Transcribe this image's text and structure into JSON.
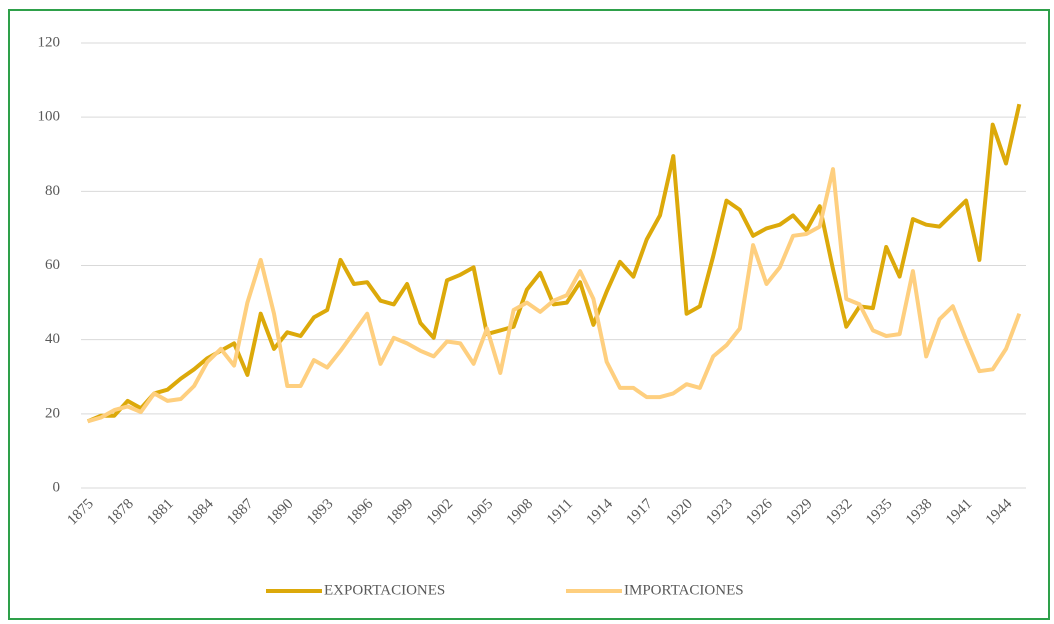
{
  "chart_data": {
    "type": "line",
    "categories": [
      "1875",
      null,
      null,
      "1878",
      null,
      null,
      "1881",
      null,
      null,
      "1884",
      null,
      null,
      "1887",
      null,
      null,
      "1890",
      null,
      null,
      "1893",
      null,
      null,
      "1896",
      null,
      null,
      "1899",
      null,
      null,
      "1902",
      null,
      null,
      "1905",
      null,
      null,
      "1908",
      null,
      null,
      "1911",
      null,
      null,
      "1914",
      null,
      null,
      "1917",
      null,
      null,
      "1920",
      null,
      null,
      "1923",
      null,
      null,
      "1926",
      null,
      null,
      "1929",
      null,
      null,
      "1932",
      null,
      null,
      "1935",
      null,
      null,
      "1938",
      null,
      null,
      "1941",
      null,
      null,
      "1944",
      null
    ],
    "series": [
      {
        "name": "EXPORTACIONES",
        "color": "#dca90a",
        "values": [
          18,
          19.5,
          19.5,
          23.5,
          21.5,
          25.5,
          26.5,
          29.5,
          32,
          35,
          37,
          39,
          30.5,
          47,
          37.5,
          42,
          41,
          46,
          48,
          61.5,
          55,
          55.5,
          50.5,
          49.5,
          55,
          44.5,
          40.5,
          56,
          57.5,
          59.5,
          41.5,
          42.5,
          43.5,
          53.5,
          58,
          49.5,
          50,
          55.5,
          44,
          53,
          61,
          57,
          67,
          73.5,
          89.5,
          47,
          49,
          62.5,
          77.5,
          75,
          68,
          70,
          71,
          73.5,
          69.5,
          76,
          59,
          43.5,
          49,
          48.5,
          65,
          57,
          72.5,
          71,
          70.5,
          74,
          77.5,
          61.5,
          98,
          87.5,
          103.5
        ]
      },
      {
        "name": "IMPORTACIONES",
        "color": "#fecf7f",
        "values": [
          18,
          19,
          21,
          22,
          20.5,
          25.5,
          23.5,
          24,
          27.5,
          34,
          37.5,
          33,
          50,
          61.5,
          47,
          27.5,
          27.5,
          34.5,
          32.5,
          37,
          42,
          47,
          33.5,
          40.5,
          39,
          37,
          35.5,
          39.5,
          39,
          33.5,
          43,
          31,
          48,
          50,
          47.5,
          50.5,
          52,
          58.5,
          51,
          34,
          27,
          27,
          24.5,
          24.5,
          25.5,
          28,
          27,
          35.5,
          38.5,
          43,
          65.5,
          55,
          59.5,
          68,
          68.5,
          70.5,
          86,
          51,
          49.5,
          42.5,
          41,
          41.5,
          58.5,
          35.5,
          45.5,
          49,
          40,
          31.5,
          32,
          37.5,
          47
        ]
      }
    ],
    "ylim": [
      0,
      120
    ],
    "yticks": [
      0,
      20,
      40,
      60,
      80,
      100,
      120
    ],
    "grid": true,
    "legend": "bottom"
  }
}
